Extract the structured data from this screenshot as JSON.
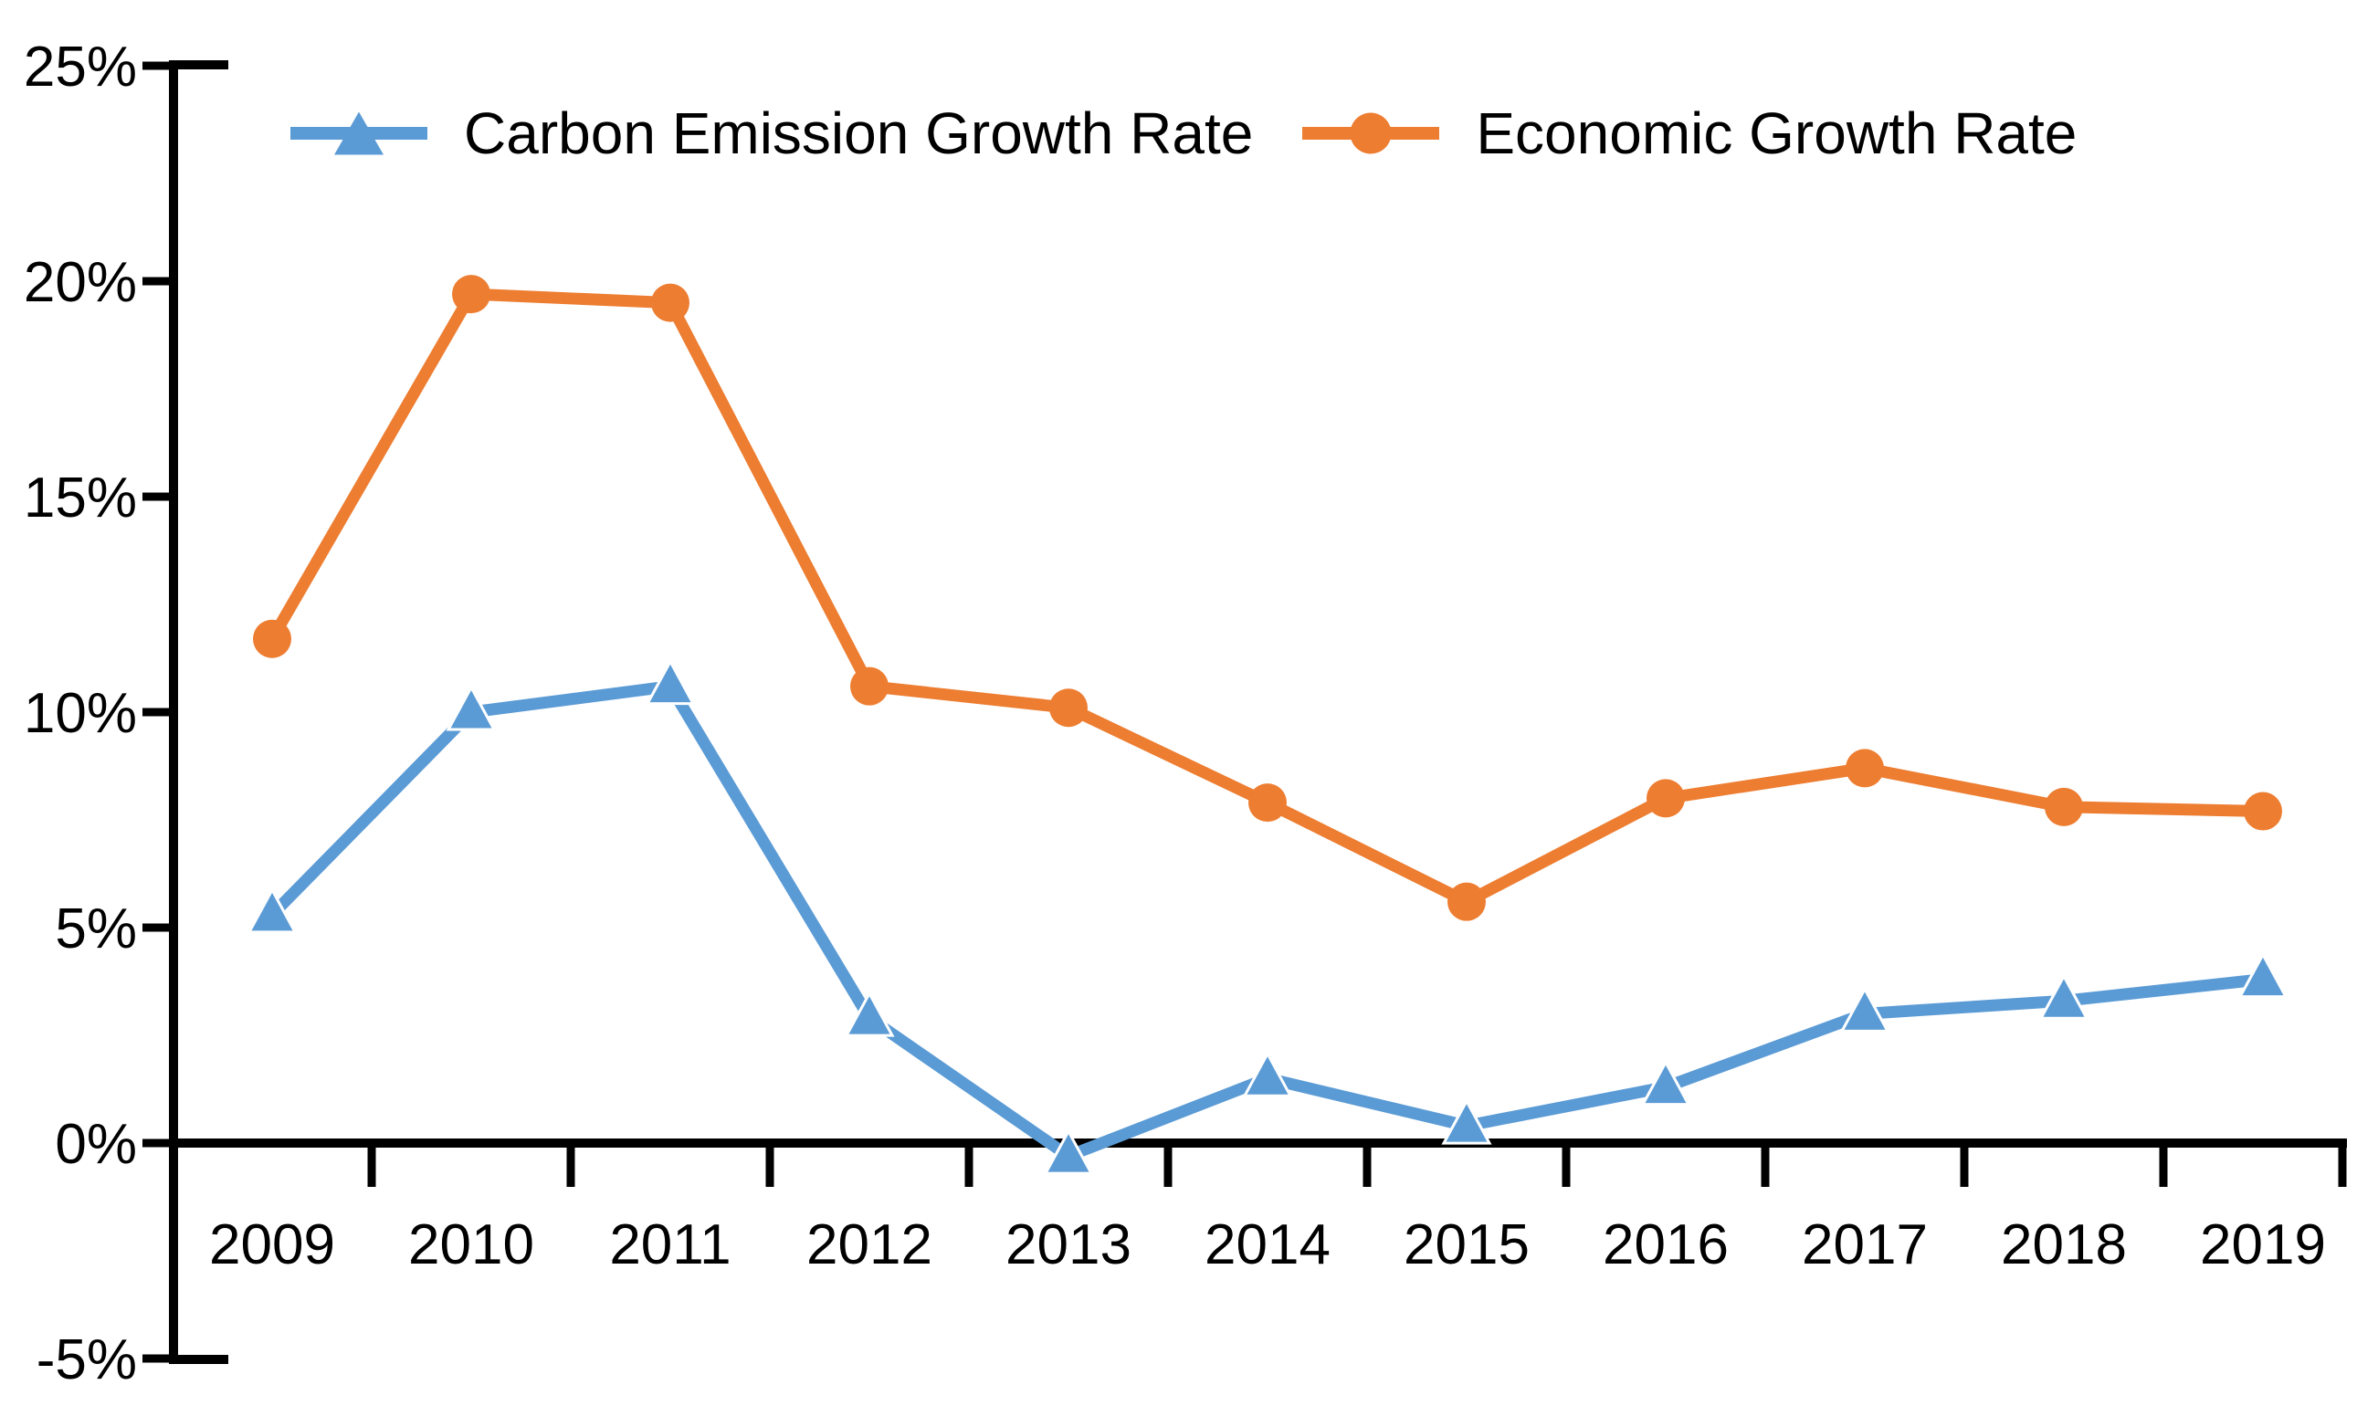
{
  "chart_data": {
    "type": "line",
    "title": "",
    "x": [
      "2009",
      "2010",
      "2011",
      "2012",
      "2013",
      "2014",
      "2015",
      "2016",
      "2017",
      "2018",
      "2019"
    ],
    "xlabel": "",
    "ylabel": "",
    "y_unit": "%",
    "ylim": [
      -5,
      25
    ],
    "ytick_step": 5,
    "ytick_labels": [
      "25%",
      "20%",
      "15%",
      "10%",
      "5%",
      "0%",
      "-5%"
    ],
    "grid": false,
    "legend_position": "top-left",
    "background_color": "#FFFFFF",
    "axis_color": "#000000",
    "series": [
      {
        "name": "Carbon Emission Growth Rate",
        "color": "#5B9BD5",
        "marker": "triangle",
        "values": [
          5.3,
          10.0,
          10.6,
          2.9,
          -0.3,
          1.5,
          0.4,
          1.3,
          3.0,
          3.3,
          3.8
        ]
      },
      {
        "name": "Economic Growth Rate",
        "color": "#ED7D31",
        "marker": "circle",
        "values": [
          11.7,
          19.7,
          19.5,
          10.6,
          10.1,
          7.9,
          5.6,
          8.0,
          8.7,
          7.8,
          7.7
        ]
      }
    ]
  }
}
